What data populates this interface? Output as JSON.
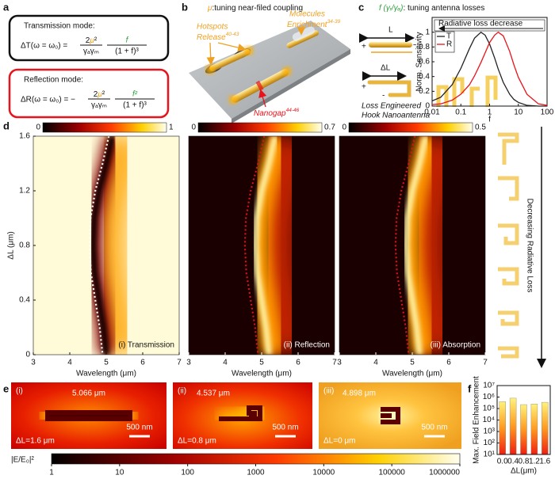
{
  "panel_a": {
    "label": "a",
    "transmission": {
      "title": "Transmission mode:",
      "lhs": "ΔT(ω = ω₀) =",
      "coef_num": [
        "2",
        "μ",
        "²"
      ],
      "coef_den": "γₐγₘ",
      "frac_num": "f",
      "frac_den": "(1 + f)³"
    },
    "reflection": {
      "title": "Reflection mode:",
      "lhs": "ΔR(ω = ω₀) = −",
      "coef_num": [
        "2",
        "μ",
        "²"
      ],
      "coef_den": "γₐγₘ",
      "frac_num": "f²",
      "frac_den": "(1 + f)³"
    }
  },
  "panel_b": {
    "label": "b",
    "title_symbol": "μ",
    "title": ":tuning near-filed coupling",
    "hotspots": [
      "Hotspots",
      "Release"
    ],
    "hotspots_ref": "40-43",
    "molecules": [
      "Molecules",
      "Enrichment"
    ],
    "molecules_ref": "34-39",
    "nanogap": "Nanogap",
    "nanogap_ref": "44-46"
  },
  "panel_c": {
    "label": "c",
    "title_symbol": "f (γᵣ/γₐ)",
    "title": ": tuning antenna losses",
    "length": "L",
    "delta_length": "ΔL",
    "plus": "+",
    "minus": "-",
    "caption": [
      "Loss Engineered",
      "Hook Nanoantenna"
    ]
  },
  "chart_data": [
    {
      "type": "line",
      "xlabel": "f",
      "ylabel": "Norm. Sensitivity",
      "annotation": "Radiative loss decrease",
      "x": [
        0.01,
        0.02,
        0.05,
        0.1,
        0.2,
        0.3,
        0.5,
        0.7,
        1,
        1.5,
        2,
        3,
        5,
        7,
        10,
        20,
        50,
        100
      ],
      "series": [
        {
          "name": "T",
          "color": "#222222",
          "values": [
            0.07,
            0.12,
            0.29,
            0.51,
            0.78,
            0.92,
            1,
            0.96,
            0.84,
            0.65,
            0.5,
            0.32,
            0.16,
            0.09,
            0.05,
            0.01,
            0,
            0
          ]
        },
        {
          "name": "R",
          "color": "#e8141b",
          "values": [
            0.02,
            0.03,
            0.08,
            0.16,
            0.29,
            0.41,
            0.59,
            0.72,
            0.86,
            0.96,
            1,
            0.95,
            0.74,
            0.56,
            0.39,
            0.16,
            0.03,
            0.01
          ]
        }
      ],
      "log_x": true,
      "xlim": [
        0.01,
        100
      ],
      "xticks": [
        0.01,
        0.1,
        1,
        10,
        100
      ],
      "ylim": [
        0,
        1.2
      ],
      "yticks": [
        0,
        0.2,
        0.4,
        0.6,
        0.8,
        1
      ],
      "legend": "upper-left"
    },
    {
      "type": "bar",
      "panel_label": "f",
      "xlabel": "ΔL(μm)",
      "ylabel": "Max. Field Enhancement",
      "categories": [
        "0.0",
        "0.4",
        "0.8",
        "1.2",
        "1.6"
      ],
      "values": [
        400000,
        800000,
        220000,
        250000,
        350000
      ],
      "log_y": true,
      "ylim": [
        10,
        10000000
      ],
      "yticks": [
        {
          "value": 10,
          "label": "10¹"
        },
        {
          "value": 100,
          "label": "10²"
        },
        {
          "value": 1000,
          "label": "10³"
        },
        {
          "value": 10000,
          "label": "10⁴"
        },
        {
          "value": 100000,
          "label": "10⁵"
        },
        {
          "value": 1000000,
          "label": "10⁶"
        },
        {
          "value": 10000000,
          "label": "10⁷"
        }
      ]
    }
  ],
  "panel_d": {
    "label": "d",
    "xlabel": "Wavelength (μm)",
    "ylabel": "ΔL (μm)",
    "xlim": [
      3,
      7
    ],
    "xticks": [
      3,
      4,
      5,
      6,
      7
    ],
    "ylim": [
      0,
      1.6
    ],
    "yticks": [
      0,
      0.4,
      0.8,
      1.2,
      1.6
    ],
    "side_label": "Decreasing Radiative Loss",
    "resonance": {
      "wavelength": [
        5.07,
        4.9,
        4.7,
        4.57,
        4.54,
        4.58,
        4.7,
        4.82,
        4.9
      ],
      "delta_l": [
        1.6,
        1.4,
        1.2,
        1.0,
        0.8,
        0.6,
        0.4,
        0.2,
        0
      ]
    },
    "maps": [
      {
        "name": "(i) Transmission",
        "colorbar_ticks": [
          0,
          1
        ],
        "line_color": "#ffffff"
      },
      {
        "name": "(ii) Reflection",
        "colorbar_ticks": [
          0,
          0.7
        ],
        "line_color": "#d8141b"
      },
      {
        "name": "(iii) Absorption",
        "colorbar_ticks": [
          0,
          0.5
        ],
        "line_color": "#d8141b"
      }
    ]
  },
  "panel_e": {
    "label": "e",
    "colorbar_label": "|E/E₀|²",
    "colorbar_ticks": [
      1,
      10,
      100,
      1000,
      10000,
      100000,
      1000000
    ],
    "maps": [
      {
        "tag": "(i)",
        "wavelength": "5.066 μm",
        "delta_l": "ΔL=1.6 μm",
        "scale": "500 nm"
      },
      {
        "tag": "(ii)",
        "wavelength": "4.537 μm",
        "delta_l": "ΔL=0.8 μm",
        "scale": "500 nm"
      },
      {
        "tag": "(iii)",
        "wavelength": "4.898 μm",
        "delta_l": "ΔL=0 μm",
        "scale": "500 nm"
      }
    ]
  }
}
